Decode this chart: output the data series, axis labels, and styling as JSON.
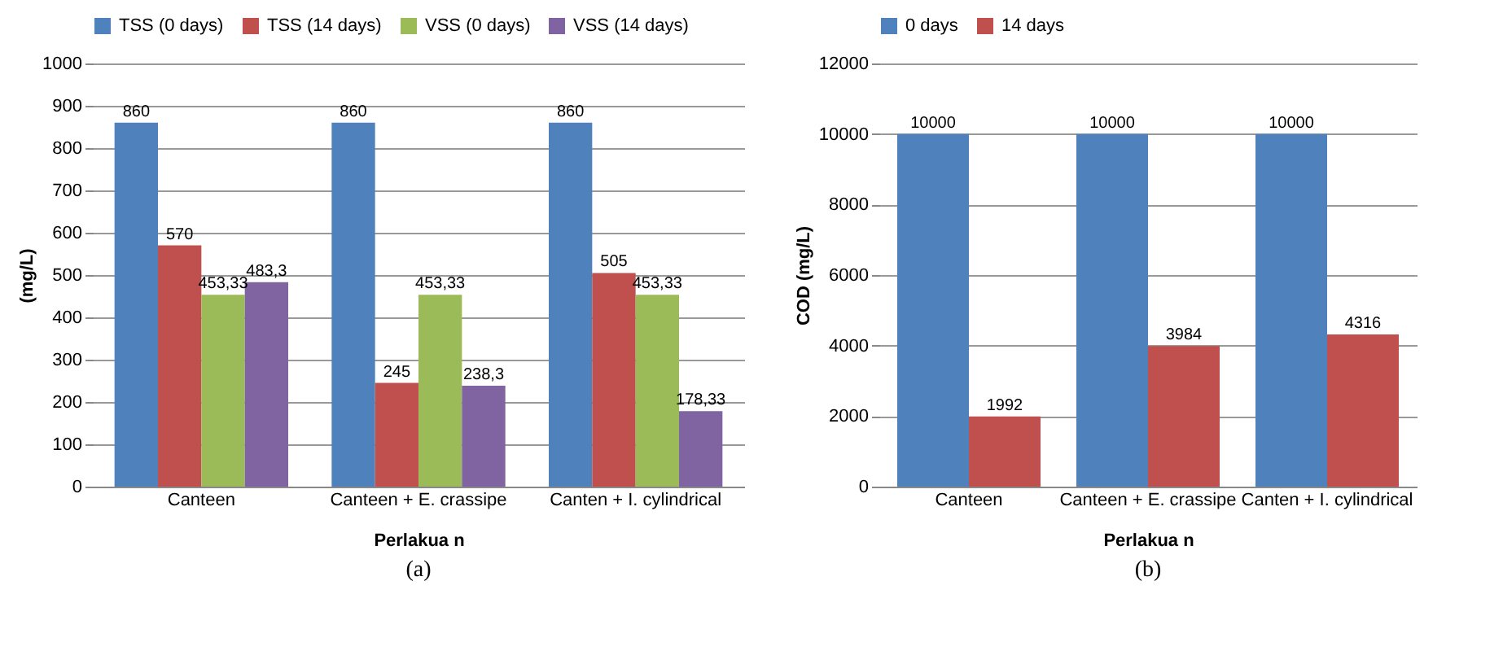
{
  "chart_data": [
    {
      "type": "bar",
      "xlabel": "Perlakua n",
      "ylabel": "(mg/L)",
      "categories": [
        "Canteen",
        "Canteen + E. crassipe",
        "Canten + I. cylindrical"
      ],
      "series": [
        {
          "name": "TSS (0 days)",
          "color": "#4f81bd",
          "values": [
            860,
            860,
            860
          ],
          "value_labels": [
            "860",
            "860",
            "860"
          ]
        },
        {
          "name": "TSS (14 days)",
          "color": "#c0504d",
          "values": [
            570,
            245,
            505
          ],
          "value_labels": [
            "570",
            "245",
            "505"
          ]
        },
        {
          "name": "VSS (0 days)",
          "color": "#9bbb59",
          "values": [
            453.33,
            453.33,
            453.33
          ],
          "value_labels": [
            "453,33",
            "453,33",
            "453,33"
          ]
        },
        {
          "name": "VSS (14 days)",
          "color": "#8064a2",
          "values": [
            483.3,
            238.3,
            178.33
          ],
          "value_labels": [
            "483,3",
            "238,3",
            "178,33"
          ]
        }
      ],
      "ylim": [
        0,
        1000
      ],
      "yticks": [
        0,
        100,
        200,
        300,
        400,
        500,
        600,
        700,
        800,
        900,
        1000
      ],
      "grid": "y",
      "legend": "top",
      "annotations": [
        "(a)"
      ]
    },
    {
      "type": "bar",
      "xlabel": "Perlakua n",
      "ylabel": "COD (mg/L)",
      "categories": [
        "Canteen",
        "Canteen + E. crassipe",
        "Canten + I. cylindrical"
      ],
      "series": [
        {
          "name": "0 days",
          "color": "#4f81bd",
          "values": [
            10000,
            10000,
            10000
          ],
          "value_labels": [
            "10000",
            "10000",
            "10000"
          ]
        },
        {
          "name": "14 days",
          "color": "#c0504d",
          "values": [
            1992,
            3984,
            4316
          ],
          "value_labels": [
            "1992",
            "3984",
            "4316"
          ]
        }
      ],
      "ylim": [
        0,
        12000
      ],
      "yticks": [
        0,
        2000,
        4000,
        6000,
        8000,
        10000,
        12000
      ],
      "grid": "y",
      "legend": "top",
      "annotations": [
        "(b)"
      ]
    }
  ]
}
